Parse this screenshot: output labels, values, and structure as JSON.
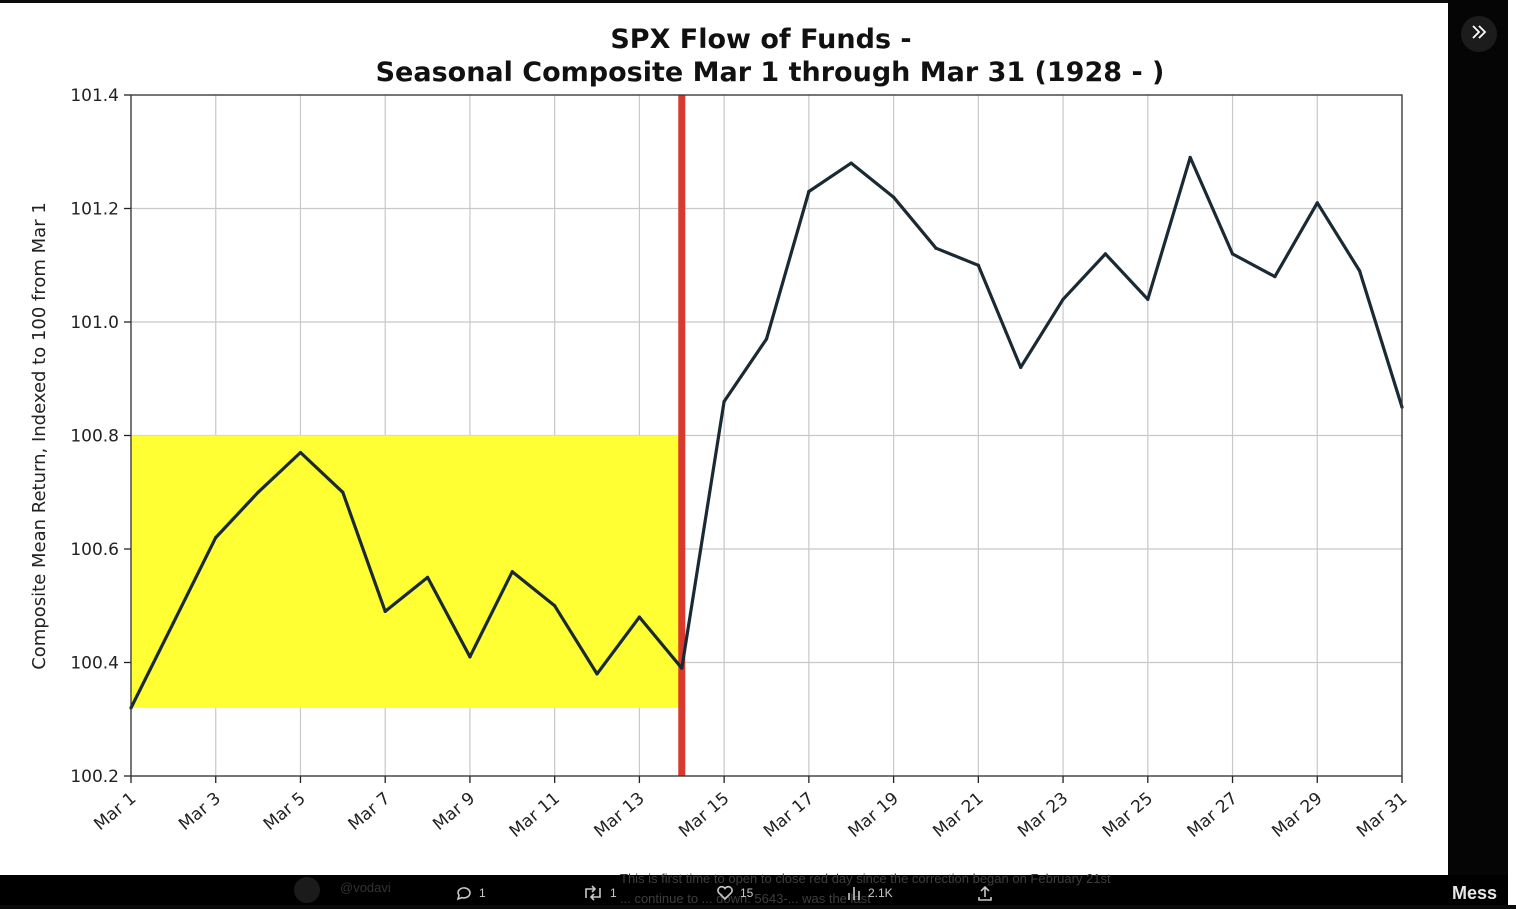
{
  "chart_data": {
    "type": "line",
    "title": "SPX Flow of Funds -",
    "subtitle": "Seasonal Composite Mar 1 through Mar 31 (1928 - )",
    "xlabel": "",
    "ylabel": "Composite Mean Return, Indexed to 100 from Mar 1",
    "ylim": [
      100.2,
      101.4
    ],
    "yticks": [
      "100.2",
      "100.4",
      "100.6",
      "100.8",
      "101.0",
      "101.2",
      "101.4"
    ],
    "x": [
      1,
      2,
      3,
      4,
      5,
      6,
      7,
      8,
      9,
      10,
      11,
      12,
      13,
      14,
      15,
      16,
      17,
      18,
      19,
      20,
      21,
      22,
      23,
      24,
      25,
      26,
      27,
      28,
      29,
      30,
      31
    ],
    "xticks": [
      "Mar 1",
      "Mar 3",
      "Mar 5",
      "Mar 7",
      "Mar 9",
      "Mar 11",
      "Mar 13",
      "Mar 15",
      "Mar 17",
      "Mar 19",
      "Mar 21",
      "Mar 23",
      "Mar 25",
      "Mar 27",
      "Mar 29",
      "Mar 31"
    ],
    "series": [
      {
        "values": [
          100.32,
          100.47,
          100.62,
          100.7,
          100.77,
          100.7,
          100.49,
          100.55,
          100.41,
          100.56,
          100.5,
          100.38,
          100.48,
          100.39,
          100.86,
          100.97,
          101.23,
          101.28,
          101.22,
          101.13,
          101.1,
          100.92,
          101.04,
          101.12,
          101.04,
          101.29,
          101.12,
          101.08,
          101.21,
          101.09,
          100.85
        ],
        "color": "#1a2a35"
      }
    ],
    "highlight_box": {
      "x_from": 1,
      "x_to": 14,
      "y_from": 100.32,
      "y_to": 100.8,
      "color": "#ffff33"
    },
    "vertical_line": {
      "x": 14,
      "color": "#d93a2f"
    },
    "grid": true,
    "legend": "none"
  },
  "ui": {
    "collapse_icon": "double-chevron-right-icon",
    "bottom_actions": {
      "replies": "1",
      "reposts": "1",
      "likes": "15",
      "views": "2.1K"
    },
    "background_tweet_text": "This is first time to open to close red day since the correction began on February 21st ... continue to ... down. 5643-... was the last",
    "background_handle": "@vodavi",
    "messages_label": "Mess"
  }
}
